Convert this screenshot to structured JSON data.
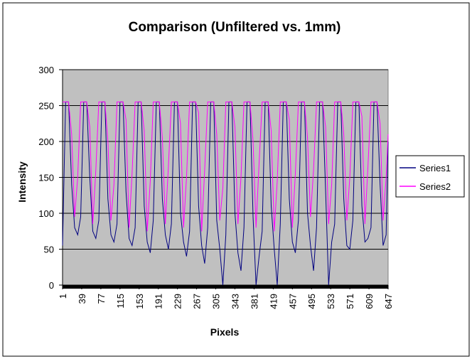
{
  "chart_data": {
    "type": "line",
    "title": "Comparison (Unfiltered vs. 1mm)",
    "x_label": "Pixels",
    "y_label": "Intensity",
    "x": [
      1,
      7,
      13,
      19,
      25,
      31,
      37,
      43,
      49,
      55,
      61,
      67,
      73,
      79,
      85,
      91,
      97,
      103,
      109,
      115,
      121,
      127,
      133,
      139,
      145,
      151,
      157,
      163,
      169,
      175,
      181,
      187,
      193,
      199,
      205,
      211,
      217,
      223,
      229,
      235,
      241,
      247,
      253,
      259,
      265,
      271,
      277,
      283,
      289,
      295,
      301,
      307,
      313,
      319,
      325,
      331,
      337,
      343,
      349,
      355,
      361,
      367,
      373,
      379,
      385,
      391,
      397,
      403,
      409,
      415,
      421,
      427,
      433,
      439,
      445,
      451,
      457,
      463,
      469,
      475,
      481,
      487,
      493,
      499,
      505,
      511,
      517,
      523,
      529,
      535,
      541,
      547,
      553,
      559,
      565,
      571,
      577,
      583,
      589,
      595,
      601,
      607,
      613,
      619,
      625,
      631,
      637,
      643,
      647
    ],
    "series": [
      {
        "name": "Series1",
        "color": "#000080",
        "values": [
          55,
          255,
          255,
          140,
          80,
          70,
          95,
          255,
          255,
          150,
          75,
          65,
          90,
          255,
          255,
          120,
          70,
          60,
          85,
          255,
          255,
          130,
          65,
          55,
          80,
          255,
          255,
          110,
          60,
          45,
          90,
          255,
          255,
          120,
          70,
          50,
          85,
          255,
          255,
          100,
          60,
          40,
          75,
          255,
          255,
          110,
          55,
          30,
          80,
          255,
          255,
          90,
          50,
          0,
          70,
          255,
          255,
          100,
          45,
          20,
          80,
          255,
          255,
          95,
          0,
          40,
          75,
          255,
          255,
          110,
          50,
          0,
          85,
          255,
          255,
          120,
          60,
          45,
          90,
          255,
          255,
          100,
          55,
          20,
          80,
          255,
          255,
          130,
          0,
          60,
          85,
          255,
          255,
          120,
          55,
          50,
          90,
          255,
          255,
          110,
          60,
          65,
          80,
          255,
          255,
          140,
          55,
          70,
          200
        ]
      },
      {
        "name": "Series2",
        "color": "#ff00ff",
        "values": [
          255,
          255,
          255,
          210,
          95,
          150,
          255,
          255,
          255,
          220,
          85,
          160,
          255,
          255,
          255,
          200,
          90,
          140,
          255,
          255,
          255,
          230,
          80,
          155,
          255,
          255,
          255,
          215,
          75,
          145,
          255,
          255,
          255,
          205,
          85,
          165,
          255,
          255,
          255,
          225,
          80,
          150,
          255,
          255,
          255,
          240,
          75,
          160,
          255,
          255,
          255,
          210,
          90,
          135,
          255,
          255,
          255,
          220,
          85,
          150,
          255,
          255,
          255,
          200,
          80,
          170,
          255,
          255,
          255,
          215,
          75,
          145,
          255,
          255,
          255,
          230,
          80,
          155,
          255,
          255,
          255,
          205,
          95,
          160,
          255,
          255,
          255,
          220,
          85,
          140,
          255,
          255,
          255,
          210,
          90,
          150,
          255,
          255,
          255,
          235,
          85,
          165,
          255,
          255,
          255,
          225,
          90,
          150,
          210
        ]
      }
    ],
    "xlim": [
      1,
      647
    ],
    "xticks": [
      1,
      39,
      77,
      115,
      153,
      191,
      229,
      267,
      305,
      343,
      381,
      419,
      457,
      495,
      533,
      571,
      609,
      647
    ],
    "ylim": [
      0,
      300
    ],
    "yticks": [
      0,
      50,
      100,
      150,
      200,
      250,
      300
    ],
    "grid": true,
    "legend": "right"
  }
}
